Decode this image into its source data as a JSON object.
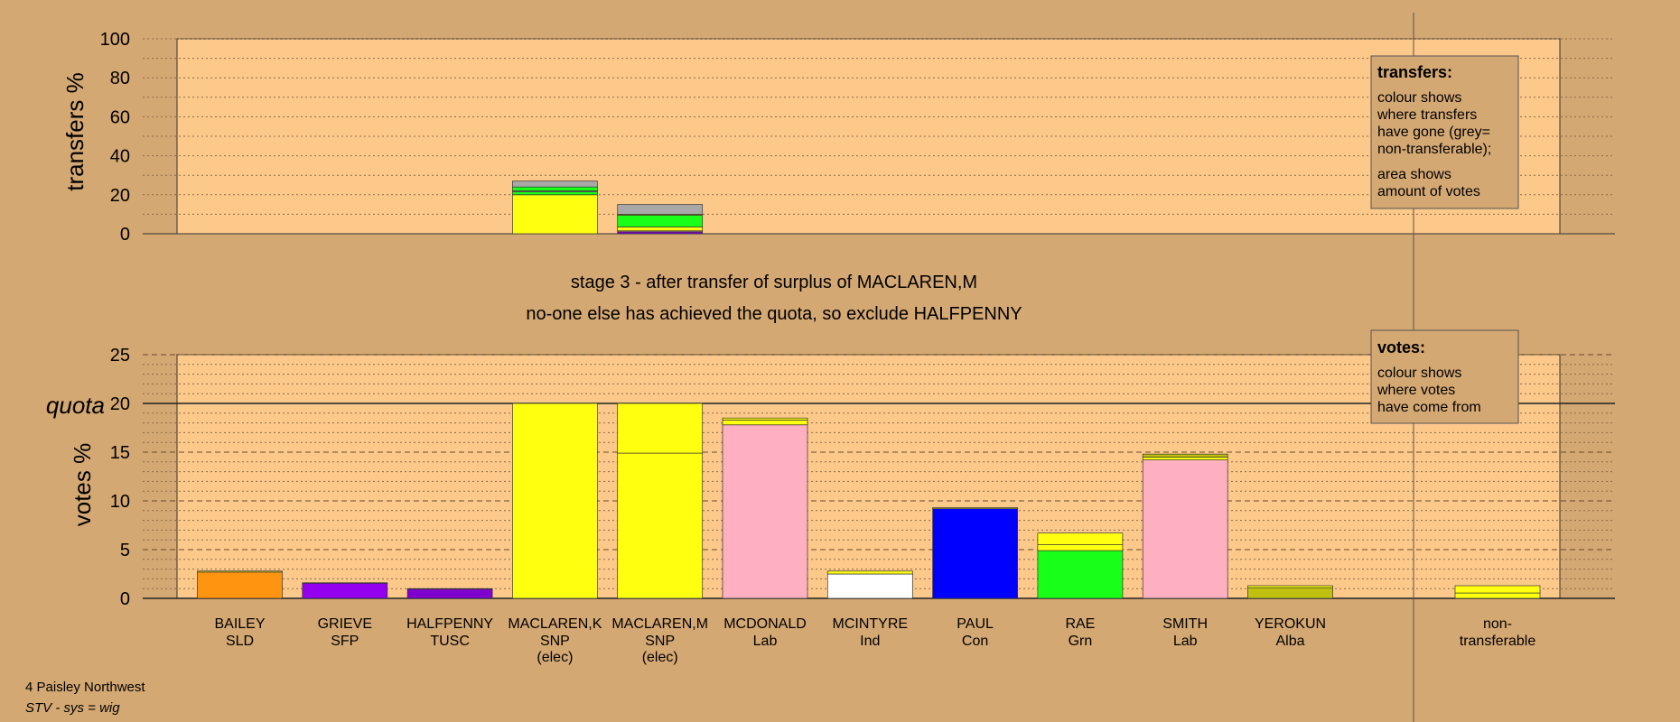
{
  "stage_text": {
    "line1": "stage 3 - after transfer of surplus of MACLAREN,M",
    "line2": "no-one else has achieved the quota, so exclude HALFPENNY"
  },
  "legend_transfers": {
    "title": "transfers:",
    "lines": [
      "colour shows",
      "where transfers",
      "have gone (grey=",
      "non-transferable);"
    ],
    "lines2": [
      "area shows",
      "amount of votes"
    ]
  },
  "legend_votes": {
    "title": "votes:",
    "lines": [
      "colour shows",
      "where votes",
      "have come from"
    ]
  },
  "footer": {
    "ward": "4 Paisley Northwest",
    "system": "STV - sys = wig"
  },
  "colors": {
    "background": "#d4a873",
    "plot_bg": "#fdc98b",
    "SLD": "#ff9410",
    "SFP": "#9400ee",
    "TUSC": "#8000d0",
    "SNP": "#ffff10",
    "Lab": "#ffb0c0",
    "Ind": "#ffffff",
    "Con": "#0000ff",
    "Grn": "#18ff18",
    "Alba": "#c0c010",
    "nontransferable": "#a8a8a8"
  },
  "chart_data": [
    {
      "type": "bar",
      "ylabel": "transfers %",
      "ylim": [
        0,
        100
      ],
      "yticks": [
        0,
        20,
        40,
        60,
        80,
        100
      ],
      "bars": [
        {
          "candidate": "MACLAREN,K",
          "segments": [
            {
              "party": "SNP",
              "value": 20
            },
            {
              "party": "Grn",
              "value": 1.5
            },
            {
              "party": "Lab",
              "value": 0.5
            },
            {
              "party": "Grn",
              "value": 2
            },
            {
              "party": "nontransferable",
              "value": 3
            }
          ]
        },
        {
          "candidate": "MACLAREN,M",
          "segments": [
            {
              "party": "TUSC",
              "value": 1
            },
            {
              "party": "Lab",
              "value": 0.5
            },
            {
              "party": "SNP",
              "value": 2
            },
            {
              "party": "Grn",
              "value": 6
            },
            {
              "party": "SNP",
              "value": 0.5
            },
            {
              "party": "nontransferable",
              "value": 5
            }
          ]
        }
      ]
    },
    {
      "type": "bar",
      "ylabel": "votes %",
      "ylim": [
        0,
        25
      ],
      "yticks": [
        0,
        5,
        10,
        15,
        20,
        25
      ],
      "quota": 20,
      "quota_label": "quota",
      "candidates": [
        {
          "name": "BAILEY",
          "party": "SLD",
          "note": "",
          "segments": [
            {
              "party": "SLD",
              "value": 2.7
            },
            {
              "party": "SNP",
              "value": 0.1
            }
          ]
        },
        {
          "name": "GRIEVE",
          "party": "SFP",
          "note": "",
          "segments": [
            {
              "party": "SFP",
              "value": 1.55
            },
            {
              "party": "SNP",
              "value": 0.05
            }
          ]
        },
        {
          "name": "HALFPENNY",
          "party": "TUSC",
          "note": "",
          "segments": [
            {
              "party": "TUSC",
              "value": 0.95
            },
            {
              "party": "SNP",
              "value": 0.05
            }
          ]
        },
        {
          "name": "MACLAREN,K",
          "party": "SNP",
          "note": "(elec)",
          "segments": [
            {
              "party": "SNP",
              "value": 20
            }
          ]
        },
        {
          "name": "MACLAREN,M",
          "party": "SNP",
          "note": "(elec)",
          "segments": [
            {
              "party": "SNP",
              "value": 14.9
            },
            {
              "party": "SNP",
              "value": 5.1
            }
          ]
        },
        {
          "name": "MCDONALD",
          "party": "Lab",
          "note": "",
          "segments": [
            {
              "party": "Lab",
              "value": 17.8
            },
            {
              "party": "SNP",
              "value": 0.5
            },
            {
              "party": "SNP",
              "value": 0.2
            }
          ]
        },
        {
          "name": "MCINTYRE",
          "party": "Ind",
          "note": "",
          "segments": [
            {
              "party": "Ind",
              "value": 2.5
            },
            {
              "party": "SNP",
              "value": 0.3
            }
          ]
        },
        {
          "name": "PAUL",
          "party": "Con",
          "note": "",
          "segments": [
            {
              "party": "Con",
              "value": 9.2
            },
            {
              "party": "SNP",
              "value": 0.1
            }
          ]
        },
        {
          "name": "RAE",
          "party": "Grn",
          "note": "",
          "segments": [
            {
              "party": "Grn",
              "value": 4.9
            },
            {
              "party": "SNP",
              "value": 0.6
            },
            {
              "party": "SNP",
              "value": 1.2
            }
          ]
        },
        {
          "name": "SMITH",
          "party": "Lab",
          "note": "",
          "segments": [
            {
              "party": "Lab",
              "value": 14.2
            },
            {
              "party": "SNP",
              "value": 0.3
            },
            {
              "party": "Alba",
              "value": 0.3
            }
          ]
        },
        {
          "name": "YEROKUN",
          "party": "Alba",
          "note": "",
          "segments": [
            {
              "party": "Alba",
              "value": 1.1
            },
            {
              "party": "SNP",
              "value": 0.2
            }
          ]
        }
      ],
      "nontransferable": {
        "label1": "non-",
        "label2": "transferable",
        "segments": [
          {
            "party": "SNP",
            "value": 0.55
          },
          {
            "party": "SNP",
            "value": 0.75
          }
        ]
      }
    }
  ]
}
